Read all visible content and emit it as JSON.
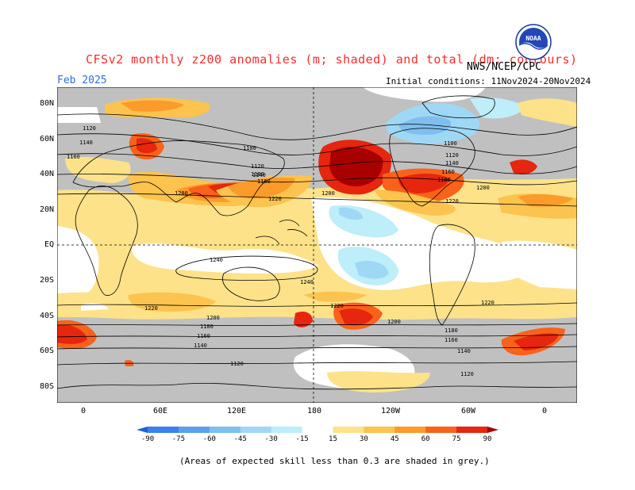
{
  "header": {
    "title": "CFSv2 monthly z200 anomalies (m; shaded) and total (dm; contours)",
    "agency": "NWS/NCEP/CPC",
    "forecast_month": "Feb 2025",
    "initial_conditions": "Initial conditions: 11Nov2024-20Nov2024"
  },
  "logo": {
    "text": "NOAA",
    "icon": "noaa-logo"
  },
  "map": {
    "lat_labels": [
      "80N",
      "60N",
      "40N",
      "20N",
      "EQ",
      "20S",
      "40S",
      "60S",
      "80S"
    ],
    "lon_labels": [
      "0",
      "60E",
      "120E",
      "180",
      "120W",
      "60W",
      "0"
    ],
    "contour_labels": [
      {
        "text": "1120"
      },
      {
        "text": "1140"
      },
      {
        "text": "1160"
      },
      {
        "text": "1100"
      },
      {
        "text": "1120"
      },
      {
        "text": "1140"
      },
      {
        "text": "1160"
      },
      {
        "text": "1200"
      },
      {
        "text": "1220"
      },
      {
        "text": "1200"
      },
      {
        "text": "1100"
      },
      {
        "text": "1120"
      },
      {
        "text": "1140"
      },
      {
        "text": "1160"
      },
      {
        "text": "1180"
      },
      {
        "text": "1200"
      },
      {
        "text": "1220"
      },
      {
        "text": "1180"
      },
      {
        "text": "1240"
      },
      {
        "text": "1240"
      },
      {
        "text": "1220"
      },
      {
        "text": "1220"
      },
      {
        "text": "1220"
      },
      {
        "text": "1200"
      },
      {
        "text": "1180"
      },
      {
        "text": "1160"
      },
      {
        "text": "1140"
      },
      {
        "text": "1200"
      },
      {
        "text": "1180"
      },
      {
        "text": "1160"
      },
      {
        "text": "1140"
      },
      {
        "text": "1120"
      },
      {
        "text": "1120"
      }
    ],
    "colors": {
      "grey": "#c0c0c0",
      "white": "#ffffff",
      "neg15": "#bdeefa",
      "neg30": "#9fd8f5",
      "neg45": "#7fbff0",
      "neg60": "#5aa0ea",
      "neg75": "#3b82e8",
      "neg90": "#1e5fd8",
      "pos15": "#fde28a",
      "pos30": "#fcc34e",
      "pos45": "#fb9b2a",
      "pos60": "#f8621a",
      "pos75": "#e6260e",
      "pos90": "#a80000"
    }
  },
  "colorbar": {
    "labels": [
      "-90",
      "-75",
      "-60",
      "-45",
      "-30",
      "-15",
      "15",
      "30",
      "45",
      "60",
      "75",
      "90"
    ],
    "colors": [
      "#1e5fd8",
      "#3b82e8",
      "#5aa0ea",
      "#7fbff0",
      "#9fd8f5",
      "#bdeefa",
      "#ffffff",
      "#fde28a",
      "#fcc34e",
      "#fb9b2a",
      "#f8621a",
      "#e6260e",
      "#a80000"
    ]
  },
  "footnote": "(Areas of expected skill less than 0.3 are shaded in grey.)"
}
